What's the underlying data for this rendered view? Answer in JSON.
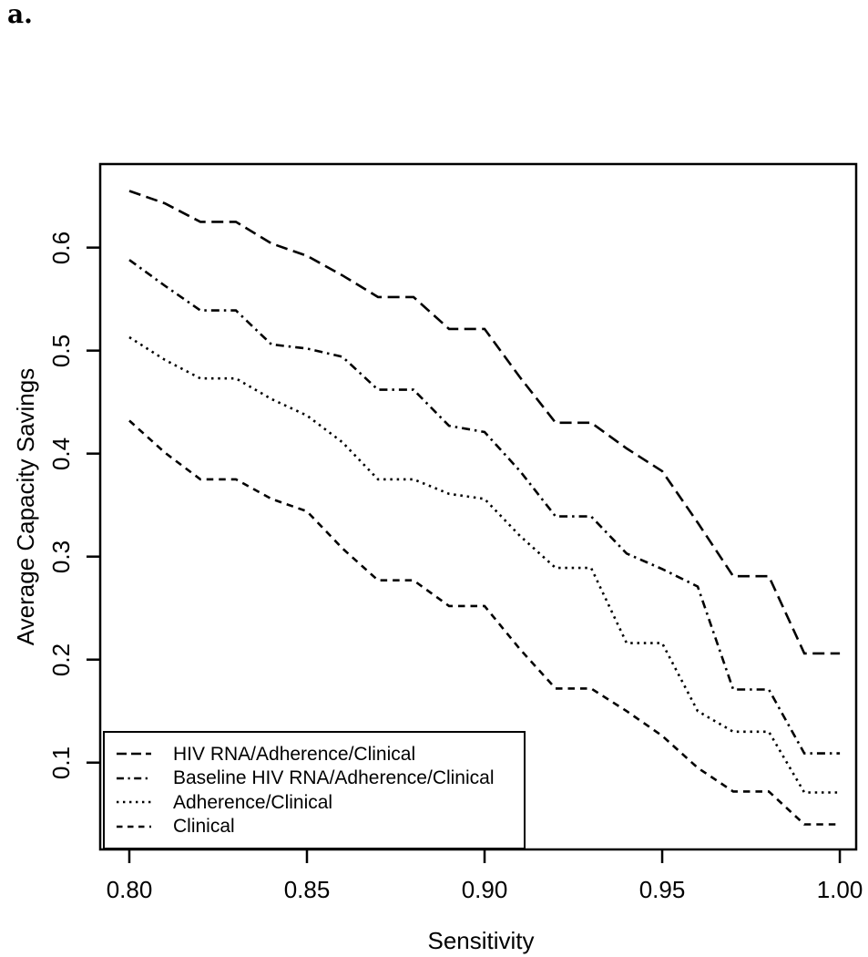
{
  "panel_label": "a.",
  "chart_data": {
    "type": "line",
    "title": "",
    "xlabel": "Sensitivity",
    "ylabel": "Average Capacity Savings",
    "grid": false,
    "legend_position": "bottom-left",
    "line_color": "#000000",
    "background_color": "#ffffff",
    "xlim": [
      0.7918,
      1.0046
    ],
    "ylim": [
      0.0157,
      0.6811
    ],
    "x_tick_values": [
      0.8,
      0.85,
      0.9,
      0.95,
      1.0
    ],
    "x_tick_labels": [
      "0.80",
      "0.85",
      "0.90",
      "0.95",
      "1.00"
    ],
    "y_tick_values": [
      0.6,
      0.5,
      0.4,
      0.3,
      0.2,
      0.1
    ],
    "y_tick_labels": [
      "0.6",
      "0.5",
      "0.4",
      "0.3",
      "0.2",
      "0.1"
    ],
    "x": [
      0.8,
      0.81,
      0.82,
      0.83,
      0.84,
      0.85,
      0.86,
      0.87,
      0.88,
      0.89,
      0.9,
      0.91,
      0.92,
      0.93,
      0.94,
      0.95,
      0.96,
      0.97,
      0.98,
      0.99,
      1.0
    ],
    "series": [
      {
        "name": "HIV RNA/Adherence/Clinical",
        "linestyle": "longdash",
        "values": [
          0.655,
          0.643,
          0.625,
          0.625,
          0.604,
          0.592,
          0.573,
          0.552,
          0.552,
          0.521,
          0.521,
          0.474,
          0.43,
          0.43,
          0.405,
          0.383,
          0.333,
          0.281,
          0.281,
          0.206,
          0.206
        ]
      },
      {
        "name": "Baseline HIV RNA/Adherence/Clinical",
        "linestyle": "dotdash",
        "values": [
          0.588,
          0.563,
          0.539,
          0.539,
          0.506,
          0.502,
          0.494,
          0.462,
          0.462,
          0.427,
          0.421,
          0.383,
          0.339,
          0.339,
          0.303,
          0.288,
          0.271,
          0.171,
          0.171,
          0.109,
          0.109
        ]
      },
      {
        "name": "Adherence/Clinical",
        "linestyle": "dotted",
        "values": [
          0.513,
          0.491,
          0.473,
          0.473,
          0.453,
          0.437,
          0.411,
          0.375,
          0.375,
          0.361,
          0.356,
          0.32,
          0.289,
          0.289,
          0.216,
          0.216,
          0.15,
          0.13,
          0.13,
          0.071,
          0.071
        ]
      },
      {
        "name": "Clinical",
        "linestyle": "dashed",
        "values": [
          0.432,
          0.401,
          0.375,
          0.375,
          0.356,
          0.344,
          0.308,
          0.277,
          0.277,
          0.252,
          0.252,
          0.21,
          0.172,
          0.172,
          0.15,
          0.126,
          0.095,
          0.072,
          0.072,
          0.04,
          0.04
        ]
      }
    ]
  }
}
